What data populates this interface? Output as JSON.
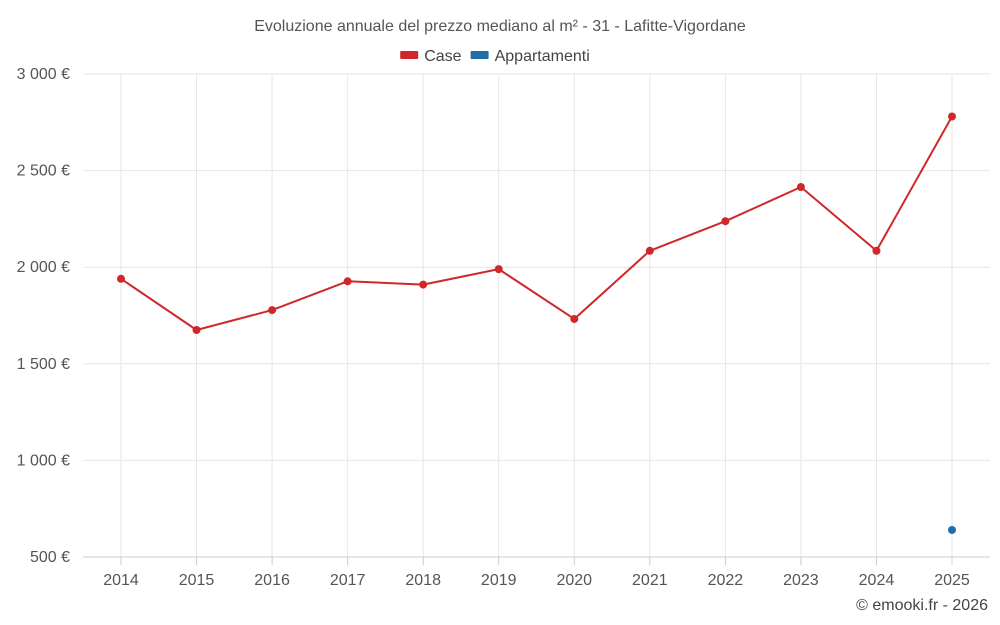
{
  "chart_data": {
    "type": "line",
    "title": "Evoluzione annuale del prezzo mediano al m² - 31 - Lafitte-Vigordane",
    "categories": [
      "2014",
      "2015",
      "2016",
      "2017",
      "2018",
      "2019",
      "2020",
      "2021",
      "2022",
      "2023",
      "2024",
      "2025"
    ],
    "series": [
      {
        "name": "Case",
        "color": "#d0282a",
        "values": [
          1940,
          1675,
          1778,
          1927,
          1910,
          1990,
          1732,
          2085,
          2238,
          2415,
          2085,
          2780
        ]
      },
      {
        "name": "Appartamenti",
        "color": "#1f6ea8",
        "values": [
          null,
          null,
          null,
          null,
          null,
          null,
          null,
          null,
          null,
          null,
          null,
          640
        ]
      }
    ],
    "y_ticks": [
      500,
      1000,
      1500,
      2000,
      2500,
      3000
    ],
    "y_tick_labels": [
      "500 €",
      "1 000 €",
      "1 500 €",
      "2 000 €",
      "2 500 €",
      "3 000 €"
    ],
    "ylim": [
      500,
      3000
    ],
    "grid": true,
    "legend_position": "top-center",
    "xlabel": "",
    "ylabel": ""
  },
  "credit": "© emooki.fr - 2026"
}
